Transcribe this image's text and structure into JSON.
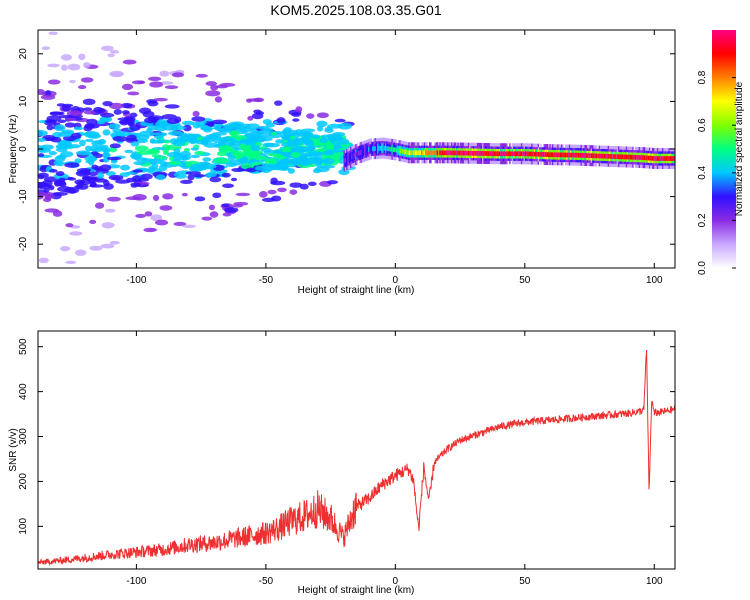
{
  "title": "KOM5.2025.108.03.35.G01",
  "chart_data": [
    {
      "type": "heatmap",
      "xlabel": "Height of straight line (km)",
      "ylabel": "Frequency (Hz)",
      "xlim": [
        -138,
        108
      ],
      "ylim": [
        -25,
        25
      ],
      "xticks": [
        -100,
        -50,
        0,
        50,
        100
      ],
      "xtick_labels": [
        "-100",
        "-50",
        "0",
        "50",
        "100"
      ],
      "yticks": [
        -20,
        -10,
        0,
        10,
        20
      ],
      "ytick_labels": [
        "-20",
        "-10",
        "0",
        "10",
        "20"
      ],
      "colorbar": {
        "label": "Normalized spectral amplitude",
        "lim": [
          0,
          1
        ],
        "ticks": [
          0,
          0.2,
          0.4,
          0.6,
          0.8
        ],
        "tick_labels": [
          "0.0",
          "0.2",
          "0.4",
          "0.6",
          "0.8"
        ],
        "colors": [
          "#ffffff",
          "#c8a8ff",
          "#8a2be2",
          "#3010ff",
          "#00c8ff",
          "#00ff80",
          "#80ff00",
          "#ffff00",
          "#ff8000",
          "#ff0000",
          "#ff0080"
        ]
      },
      "ridge": {
        "x": [
          -20,
          -15,
          -10,
          -5,
          0,
          5,
          10,
          20,
          30,
          40,
          50,
          60,
          70,
          80,
          90,
          95,
          100,
          105,
          108
        ],
        "y": [
          -2.5,
          -1.0,
          0.0,
          0.2,
          -0.2,
          -0.8,
          -0.8,
          -0.8,
          -0.9,
          -1.0,
          -1.0,
          -1.2,
          -1.3,
          -1.5,
          -1.7,
          -1.8,
          -2.0,
          -2.0,
          -2.0
        ]
      }
    },
    {
      "type": "line",
      "xlabel": "Height of straight line (km)",
      "ylabel": "SNR (v/v)",
      "xlim": [
        -138,
        108
      ],
      "ylim": [
        5,
        535
      ],
      "xticks": [
        -100,
        -50,
        0,
        50,
        100
      ],
      "xtick_labels": [
        "-100",
        "-50",
        "0",
        "50",
        "100"
      ],
      "yticks": [
        100,
        200,
        300,
        400,
        500
      ],
      "ytick_labels": [
        "100",
        "200",
        "300",
        "400",
        "500"
      ],
      "line_color": "#ee3030",
      "series": [
        {
          "x": [
            -138,
            -130,
            -120,
            -110,
            -100,
            -90,
            -80,
            -70,
            -60,
            -50,
            -45,
            -40,
            -35,
            -30,
            -25,
            -20,
            -15,
            -10,
            -5,
            0,
            5,
            7,
            9,
            11,
            13,
            15,
            20,
            25,
            30,
            40,
            50,
            60,
            70,
            80,
            90,
            95,
            96,
            97,
            98,
            99,
            100,
            105,
            108
          ],
          "y": [
            18,
            22,
            28,
            35,
            40,
            45,
            55,
            60,
            70,
            80,
            90,
            105,
            115,
            130,
            110,
            70,
            140,
            160,
            190,
            210,
            225,
            200,
            90,
            230,
            150,
            240,
            270,
            290,
            300,
            320,
            330,
            335,
            340,
            345,
            350,
            355,
            360,
            500,
            170,
            380,
            350,
            355,
            360
          ]
        }
      ]
    }
  ]
}
